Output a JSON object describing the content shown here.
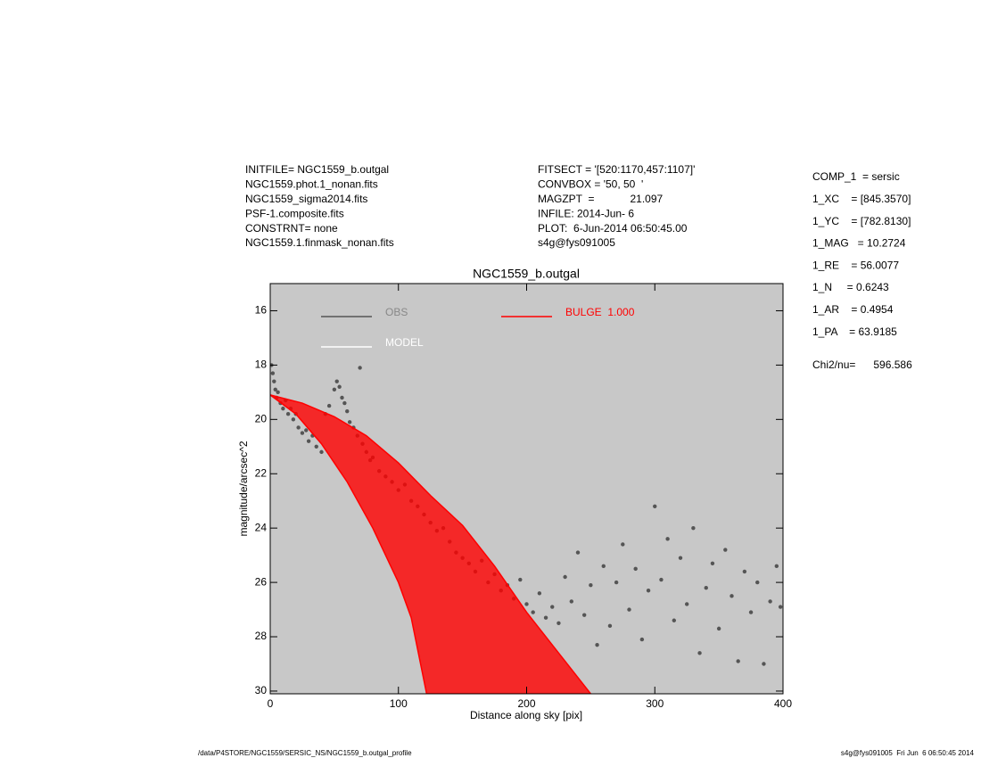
{
  "chart_data": {
    "type": "scatter",
    "title": "NGC1559_b.outgal",
    "xlabel": "Distance along sky [pix]",
    "ylabel": "magnitude/arcsec^2",
    "header_left": [
      "INITFILE= NGC1559_b.outgal",
      "NGC1559.phot.1_nonan.fits",
      "NGC1559_sigma2014.fits",
      "PSF-1.composite.fits",
      "CONSTRNT= none",
      "NGC1559.1.finmask_nonan.fits"
    ],
    "header_mid": [
      "FITSECT = '[520:1170,457:1107]'",
      "CONVBOX = '50, 50  '",
      "MAGZPT  =            21.097",
      "INFILE: 2014-Jun- 6",
      "PLOT:  6-Jun-2014 06:50:45.00",
      "s4g@fys091005"
    ],
    "params": [
      "COMP_1  = sersic",
      "1_XC    = [845.3570]",
      "1_YC    = [782.8130]",
      "1_MAG   = 10.2724",
      "1_RE    = 56.0077",
      "1_N     = 0.6243",
      "1_AR    = 0.4954",
      "1_PA    = 63.9185"
    ],
    "chi2": "Chi2/nu=      596.586",
    "footer_left": "/data/P4STORE/NGC1559/SERSIC_NS/NGC1559_b.outgal_profile",
    "footer_right": "s4g@fys091005  Fri Jun  6 06:50:45 2014",
    "xlim": [
      0,
      400
    ],
    "xticks": [
      0,
      100,
      200,
      300,
      400
    ],
    "ylim": [
      30.1,
      15
    ],
    "yticks": [
      16,
      18,
      20,
      22,
      24,
      26,
      28,
      30
    ],
    "background": "#c8c8c8",
    "series": [
      {
        "name": "OBS",
        "color": "#555555",
        "x": [
          1,
          2,
          3,
          4,
          5,
          6,
          8,
          10,
          12,
          14,
          16,
          18,
          20,
          22,
          25,
          28,
          30,
          33,
          36,
          40,
          43,
          46,
          50,
          52,
          54,
          56,
          58,
          60,
          62,
          65,
          68,
          70,
          72,
          75,
          78,
          80,
          85,
          90,
          95,
          100,
          105,
          110,
          115,
          120,
          125,
          130,
          135,
          140,
          145,
          150,
          155,
          160,
          165,
          170,
          175,
          180,
          185,
          190,
          195,
          200,
          205,
          210,
          215,
          220,
          225,
          230,
          235,
          240,
          245,
          250,
          255,
          260,
          265,
          270,
          275,
          280,
          285,
          290,
          295,
          300,
          305,
          310,
          315,
          320,
          325,
          330,
          335,
          340,
          345,
          350,
          355,
          360,
          365,
          370,
          375,
          380,
          385,
          390,
          395,
          398
        ],
        "values": [
          18.0,
          18.3,
          18.6,
          18.9,
          19.2,
          19.0,
          19.4,
          19.6,
          19.3,
          19.8,
          19.6,
          20.0,
          19.8,
          20.3,
          20.5,
          20.4,
          20.8,
          20.6,
          21.0,
          21.2,
          19.8,
          19.5,
          18.9,
          18.6,
          18.8,
          19.2,
          19.4,
          19.7,
          20.1,
          20.3,
          20.6,
          18.1,
          20.9,
          21.2,
          21.5,
          21.4,
          21.9,
          22.1,
          22.3,
          22.6,
          22.4,
          23.0,
          23.2,
          23.5,
          23.8,
          24.1,
          24.0,
          24.5,
          24.9,
          25.1,
          25.3,
          25.6,
          25.2,
          26.0,
          25.7,
          26.3,
          26.1,
          26.6,
          25.9,
          26.8,
          27.1,
          26.4,
          27.3,
          26.9,
          27.5,
          25.8,
          26.7,
          24.9,
          27.2,
          26.1,
          28.3,
          25.4,
          27.6,
          26.0,
          24.6,
          27.0,
          25.5,
          28.1,
          26.3,
          23.2,
          25.9,
          24.4,
          27.4,
          25.1,
          26.8,
          24.0,
          28.6,
          26.2,
          25.3,
          27.7,
          24.8,
          26.5,
          28.9,
          25.6,
          27.1,
          26.0,
          29.0,
          26.7,
          25.4,
          26.9
        ]
      },
      {
        "name": "MODEL",
        "color": "#ffffff"
      },
      {
        "name": "BULGE  1.000",
        "color": "#ff0000",
        "x": [
          0,
          25,
          50,
          75,
          100,
          125,
          150,
          175,
          200,
          225,
          250
        ],
        "values": [
          19.1,
          19.4,
          19.9,
          20.6,
          21.6,
          22.8,
          23.9,
          25.4,
          27.1,
          28.6,
          30.1
        ],
        "x_minor": [
          0,
          20,
          40,
          60,
          80,
          100,
          110,
          122
        ],
        "values_minor": [
          19.1,
          19.8,
          20.9,
          22.3,
          24.0,
          26.0,
          27.3,
          30.1
        ]
      }
    ]
  }
}
